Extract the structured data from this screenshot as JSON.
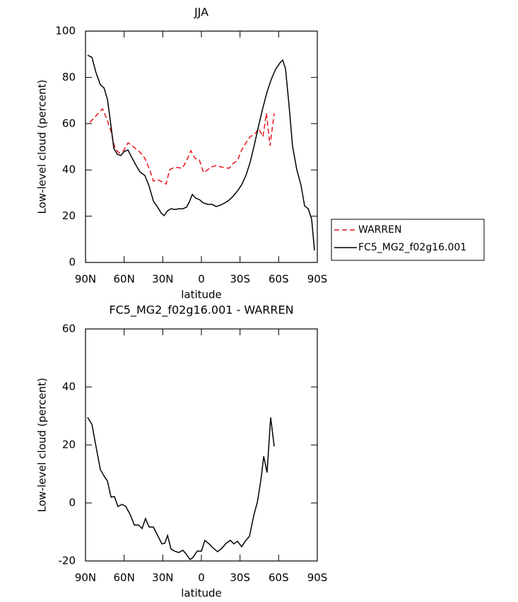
{
  "chart_data": [
    {
      "type": "line",
      "title": "JJA",
      "xlabel": "latitude",
      "ylabel": "Low-level cloud (percent)",
      "xlim": [
        90,
        -90
      ],
      "xticks": [
        {
          "value": 90,
          "label": "90N"
        },
        {
          "value": 60,
          "label": "60N"
        },
        {
          "value": 30,
          "label": "30N"
        },
        0,
        {
          "value": -30,
          "label": "30S"
        },
        {
          "value": -60,
          "label": "60S"
        },
        {
          "value": -90,
          "label": "90S"
        }
      ],
      "ylim": [
        0,
        100
      ],
      "yticks": [
        0,
        20,
        40,
        60,
        80,
        100
      ],
      "legend": "outside-right",
      "series": [
        {
          "name": "WARREN",
          "color": "#e8141b",
          "dashed": true,
          "x": [
            86.7,
            83.4,
            80.1,
            76.8,
            73.5,
            70.2,
            66.9,
            63.7,
            60.4,
            57,
            53.8,
            50.5,
            47.2,
            43.9,
            40.6,
            37.3,
            34,
            30.7,
            27.4,
            24.7,
            21.4,
            18.1,
            14.8,
            11.5,
            8.2,
            4.9,
            1.6,
            -1.6,
            -4.9,
            -8.2,
            -11.5,
            -14.8,
            -18.1,
            -21.4,
            -24.7,
            -28,
            -31.3,
            -34.6,
            -37.9,
            -41.2,
            -44.5,
            -47.8,
            -50.5,
            -53.3,
            -56.5
          ],
          "values": [
            60.6,
            62.4,
            64.5,
            66.4,
            62.1,
            56.6,
            48.9,
            47.4,
            48.3,
            51.7,
            50.5,
            48.9,
            47.4,
            45,
            40.7,
            35.2,
            35.8,
            34.9,
            33.9,
            40.1,
            41,
            41,
            40.7,
            44,
            48.3,
            45,
            44.3,
            38.8,
            40.1,
            41.3,
            41.9,
            41.3,
            41,
            40.7,
            42.8,
            44,
            48.6,
            51.7,
            54.4,
            55.4,
            57.8,
            54.4,
            64.5,
            50.5,
            64.5
          ]
        },
        {
          "name": "FC5_MG2_f02g16.001",
          "color": "#000000",
          "dashed": false,
          "x": [
            88.4,
            85,
            82,
            78.5,
            75.7,
            73,
            70.8,
            68,
            65.3,
            62.6,
            59.8,
            57,
            54.3,
            51,
            47.7,
            43.9,
            40.6,
            37.3,
            34,
            31.3,
            29,
            26.3,
            23.6,
            20.3,
            17.6,
            14.3,
            11.5,
            9.3,
            7.1,
            4.4,
            1.6,
            -1.6,
            -4.9,
            -8.2,
            -11.5,
            -14.8,
            -18.1,
            -21.4,
            -24.7,
            -28,
            -31.3,
            -34.6,
            -37.9,
            -41.2,
            -44.5,
            -47.8,
            -51,
            -54.3,
            -57.6,
            -60.9,
            -63.1,
            -65.3,
            -68.1,
            -70.8,
            -74.1,
            -77.4,
            -80.1,
            -82.9,
            -85.6,
            -87.8
          ],
          "values": [
            89.6,
            88.7,
            82.3,
            76.8,
            75.5,
            70.6,
            61.5,
            49.2,
            46.8,
            46.2,
            48,
            48.6,
            45.6,
            42.2,
            39.1,
            37.6,
            33,
            26.6,
            23.9,
            21.4,
            20.2,
            22.3,
            23.2,
            22.9,
            23.2,
            23.2,
            23.9,
            26.3,
            29.4,
            27.8,
            27.2,
            25.7,
            25.1,
            25.1,
            24.2,
            24.8,
            25.7,
            26.9,
            28.7,
            30.9,
            33.6,
            37.6,
            43.4,
            51.1,
            59.3,
            67,
            73.7,
            79.2,
            83.5,
            86.2,
            87.5,
            83.8,
            67.6,
            50.2,
            40.1,
            33.3,
            24.5,
            23.2,
            18.7,
            5.2
          ]
        }
      ]
    },
    {
      "type": "line",
      "title": "FC5_MG2_f02g16.001 - WARREN",
      "xlabel": "latitude",
      "ylabel": "Low-level cloud (percent)",
      "xlim": [
        90,
        -90
      ],
      "xticks": [
        {
          "value": 90,
          "label": "90N"
        },
        {
          "value": 60,
          "label": "60N"
        },
        {
          "value": 30,
          "label": "30N"
        },
        0,
        {
          "value": -30,
          "label": "30S"
        },
        {
          "value": -60,
          "label": "60S"
        },
        {
          "value": -90,
          "label": "90S"
        }
      ],
      "ylim": [
        -20,
        60
      ],
      "yticks": [
        -20,
        0,
        20,
        40,
        60
      ],
      "series": [
        {
          "color": "#000000",
          "dashed": false,
          "x": [
            88.4,
            85,
            82,
            78.5,
            75.2,
            73,
            70.2,
            67.5,
            64.8,
            61.5,
            58.7,
            55.4,
            52.1,
            48.8,
            46.1,
            43.4,
            40.6,
            37.3,
            34,
            30.7,
            28.5,
            26.3,
            23.6,
            20.8,
            17.6,
            14.3,
            11.5,
            8.8,
            6.6,
            3.3,
            0,
            -2.7,
            -6,
            -9.3,
            -12.6,
            -15.9,
            -19.2,
            -22.5,
            -25.2,
            -28,
            -31.3,
            -34,
            -37.3,
            -40.6,
            -43.4,
            -46.1,
            -48.4,
            -51,
            -53.8,
            -56.5
          ],
          "values": [
            29.5,
            27.1,
            19.8,
            11.5,
            9,
            7.6,
            2,
            2.2,
            -1.2,
            -0.5,
            -1.2,
            -3.9,
            -7.6,
            -7.6,
            -8.8,
            -5.4,
            -8.3,
            -8.3,
            -11.2,
            -14.1,
            -13.9,
            -11.2,
            -15.9,
            -16.6,
            -17.1,
            -16.3,
            -17.8,
            -19.5,
            -18.8,
            -16.6,
            -16.6,
            -12.9,
            -14.1,
            -15.6,
            -16.8,
            -15.6,
            -13.9,
            -12.9,
            -14.1,
            -13.2,
            -15.1,
            -13.2,
            -11.5,
            -4.4,
            0.2,
            7.6,
            16.1,
            10.5,
            29.5,
            19.5
          ]
        }
      ]
    }
  ]
}
